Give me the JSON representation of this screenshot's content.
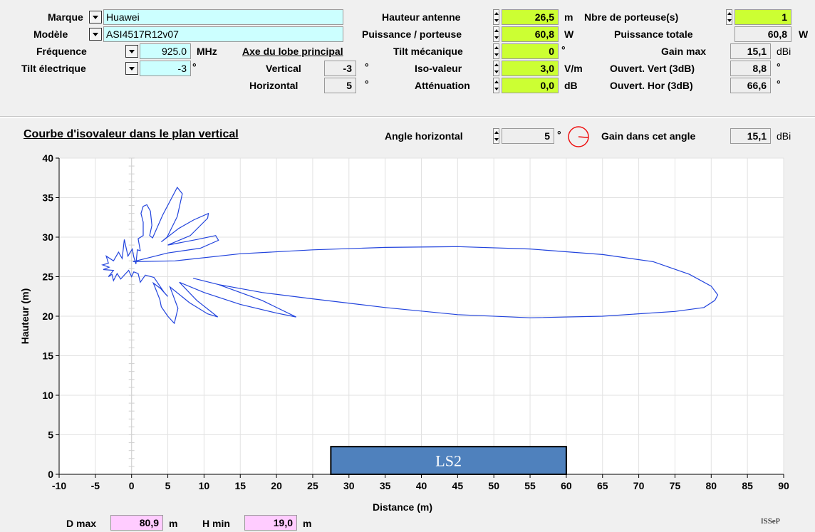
{
  "antenna": {
    "marque_label": "Marque",
    "marque_value": "Huawei",
    "modele_label": "Modèle",
    "modele_value": "ASI4517R12v07",
    "frequence_label": "Fréquence",
    "frequence_value": "925.0",
    "frequence_unit": "MHz",
    "tilt_elec_label": "Tilt électrique",
    "tilt_elec_value": "-3",
    "tilt_elec_unit": "°"
  },
  "lobe": {
    "title": "Axe du lobe principal",
    "vertical_label": "Vertical",
    "vertical_value": "-3",
    "vertical_unit": "°",
    "horizontal_label": "Horizontal",
    "horizontal_value": "5",
    "horizontal_unit": "°"
  },
  "params": {
    "hauteur_label": "Hauteur antenne",
    "hauteur_value": "26,5",
    "hauteur_unit": "m",
    "puissance_label": "Puissance / porteuse",
    "puissance_value": "60,8",
    "puissance_unit": "W",
    "tilt_meca_label": "Tilt mécanique",
    "tilt_meca_value": "0",
    "tilt_meca_unit": "°",
    "iso_label": "Iso-valeur",
    "iso_value": "3,0",
    "iso_unit": "V/m",
    "att_label": "Atténuation",
    "att_value": "0,0",
    "att_unit": "dB"
  },
  "results": {
    "nbre_label": "Nbre de porteuse(s)",
    "nbre_value": "1",
    "ptot_label": "Puissance totale",
    "ptot_value": "60,8",
    "ptot_unit": "W",
    "gain_label": "Gain max",
    "gain_value": "15,1",
    "gain_unit": "dBi",
    "ov_label": "Ouvert. Vert (3dB)",
    "ov_value": "8,8",
    "ov_unit": "°",
    "oh_label": "Ouvert. Hor (3dB)",
    "oh_value": "66,6",
    "oh_unit": "°"
  },
  "plot_header": {
    "title": "Courbe d'isovaleur dans le plan vertical",
    "angle_label": "Angle horizontal",
    "angle_value": "5",
    "angle_unit": "°",
    "gain_angle_label": "Gain dans cet angle",
    "gain_angle_value": "15,1",
    "gain_angle_unit": "dBi"
  },
  "footer": {
    "dmax_label": "D max",
    "dmax_value": "80,9",
    "dmax_unit": "m",
    "hmin_label": "H min",
    "hmin_value": "19,0",
    "hmin_unit": "m",
    "credit": "ISSeP"
  },
  "colors": {
    "curve": "#2244dd",
    "box": "#4f81bd",
    "angle_circle": "#ee1111"
  },
  "chart_data": {
    "type": "line",
    "xlabel": "Distance (m)",
    "ylabel": "Hauteur (m)",
    "xlim": [
      -10,
      90
    ],
    "ylim": [
      0,
      40
    ],
    "xticks": [
      -10,
      -5,
      0,
      5,
      10,
      15,
      20,
      25,
      30,
      35,
      40,
      45,
      50,
      55,
      60,
      65,
      70,
      75,
      80,
      85,
      90
    ],
    "yticks": [
      0,
      5,
      10,
      15,
      20,
      25,
      30,
      35,
      40
    ],
    "grid": true,
    "annotation_box": {
      "label": "LS2",
      "x_range": [
        27.5,
        60
      ],
      "y_range": [
        0,
        3.5
      ]
    },
    "series": [
      {
        "values": [
          [
            0.2,
            26.9
          ],
          [
            6,
            27.0
          ],
          [
            15,
            27.9
          ],
          [
            25,
            28.4
          ],
          [
            35,
            28.7
          ],
          [
            45,
            28.8
          ],
          [
            55,
            28.5
          ],
          [
            65,
            27.8
          ],
          [
            72,
            26.9
          ],
          [
            77,
            25.3
          ],
          [
            80,
            23.8
          ],
          [
            80.9,
            22.7
          ],
          [
            80.5,
            22.0
          ],
          [
            79,
            21.1
          ],
          [
            75,
            20.6
          ],
          [
            65,
            20.0
          ],
          [
            55,
            19.8
          ],
          [
            45,
            20.2
          ],
          [
            35,
            21.1
          ],
          [
            25,
            22.2
          ],
          [
            18,
            23.0
          ],
          [
            12,
            24.0
          ],
          [
            8.5,
            24.8
          ],
          [
            12,
            24.0
          ],
          [
            18,
            22.0
          ],
          [
            22.7,
            19.9
          ],
          [
            20,
            20.4
          ],
          [
            15,
            21.5
          ],
          [
            10,
            23.0
          ],
          [
            6.6,
            24.3
          ],
          [
            9,
            22.0
          ],
          [
            11.9,
            19.9
          ],
          [
            10.5,
            20.3
          ],
          [
            8,
            21.7
          ],
          [
            5.3,
            23.7
          ],
          [
            6.4,
            21.0
          ],
          [
            5.9,
            19.1
          ],
          [
            5.0,
            20.0
          ],
          [
            4.1,
            21.2
          ],
          [
            3.9,
            22.1
          ],
          [
            3.0,
            24.2
          ],
          [
            4.0,
            23.5
          ],
          [
            5.0,
            22.5
          ],
          [
            4.5,
            23.0
          ],
          [
            3.1,
            24.9
          ],
          [
            1.9,
            25.2
          ],
          [
            1.2,
            24.3
          ],
          [
            0.9,
            25.4
          ],
          [
            0.3,
            25.6
          ],
          [
            0,
            25.0
          ],
          [
            -0.4,
            25.8
          ],
          [
            -1.5,
            24.7
          ],
          [
            -2.0,
            25.4
          ],
          [
            -2.5,
            24.5
          ],
          [
            -2.7,
            25.3
          ],
          [
            -3.2,
            25.0
          ],
          [
            -2.5,
            25.8
          ],
          [
            -3.9,
            25.9
          ],
          [
            -3.1,
            26.2
          ],
          [
            -4.0,
            26.5
          ],
          [
            -3.2,
            26.7
          ],
          [
            -3.5,
            27.6
          ],
          [
            -2.5,
            27.0
          ],
          [
            -1.8,
            28.1
          ],
          [
            -1.3,
            27.3
          ],
          [
            -1.0,
            29.7
          ],
          [
            -0.5,
            27.6
          ],
          [
            0.1,
            28.5
          ],
          [
            0.3,
            27.5
          ],
          [
            0.6,
            26.6
          ],
          [
            0.8,
            28.4
          ],
          [
            1.2,
            28.3
          ],
          [
            0.9,
            29.8
          ],
          [
            1.6,
            30.2
          ],
          [
            1.6,
            31.9
          ],
          [
            1.3,
            33.0
          ],
          [
            1.6,
            33.9
          ],
          [
            2.1,
            34.1
          ],
          [
            2.6,
            33.3
          ],
          [
            2.8,
            31.5
          ],
          [
            2.5,
            30.2
          ],
          [
            2.9,
            29.9
          ],
          [
            4.3,
            32.8
          ],
          [
            6.3,
            36.3
          ],
          [
            7.0,
            35.5
          ],
          [
            6.3,
            32.6
          ],
          [
            4.9,
            30.0
          ],
          [
            4.1,
            29.4
          ],
          [
            6.5,
            31.1
          ],
          [
            8.6,
            32.2
          ],
          [
            10.6,
            33.0
          ],
          [
            10.5,
            32.4
          ],
          [
            8.1,
            30.2
          ],
          [
            5.0,
            29.0
          ],
          [
            9.0,
            29.7
          ],
          [
            11.6,
            30.2
          ],
          [
            12.0,
            29.6
          ],
          [
            9.5,
            28.6
          ],
          [
            5.0,
            28.0
          ],
          [
            0.2,
            26.9
          ]
        ]
      }
    ]
  }
}
